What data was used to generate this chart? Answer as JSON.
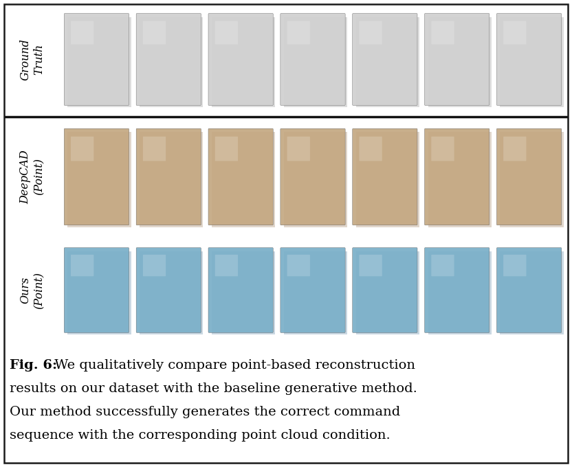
{
  "background_color": "#ffffff",
  "border_color": "#1a1a1a",
  "figure_width": 8.32,
  "figure_height": 6.8,
  "caption_lines": [
    "Fig. 6: We qualitatively compare point-based reconstruction",
    "results on our dataset with the baseline generative method.",
    "Our method successfully generates the correct command",
    "sequence with the corresponding point cloud condition."
  ],
  "caption_fontsize": 14.0,
  "caption_bold_prefix": "Fig. 6:",
  "row_labels": [
    "Ground\nTruth",
    "DeepCAD\n(Point)",
    "Ours\n(Point)"
  ],
  "label_fontsize": 11.5,
  "row1_color": "#d0d0d0",
  "row2_color": "#c4a882",
  "row3_color": "#7aafc8",
  "row1_bg": "#f0f0f0",
  "row2_bg": "#f5f0eb",
  "row3_bg": "#eef3f7",
  "divider_color": "#111111",
  "divider_linewidth": 2.5,
  "n_items": 7,
  "border_linewidth": 1.8
}
